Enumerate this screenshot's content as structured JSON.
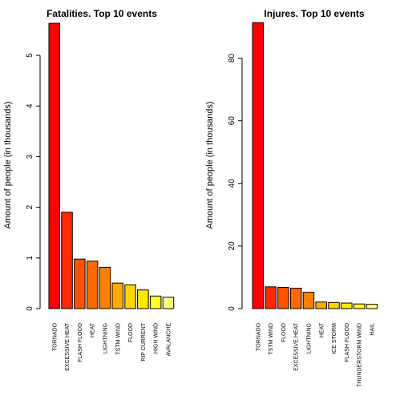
{
  "chart_data": [
    {
      "type": "bar",
      "title": "Fatalities. Top 10 events",
      "xlabel": "",
      "ylabel": "Amount of people (in  thousands)",
      "ylim": [
        0,
        5.65
      ],
      "yticks": [
        0,
        1,
        2,
        3,
        4,
        5
      ],
      "categories": [
        "TORNADO",
        "EXCESSIVE HEAT",
        "FLASH FLOOD",
        "HEAT",
        "LIGHTNING",
        "TSTM WIND",
        "FLOOD",
        "RIP CURRENT",
        "HIGH WIND",
        "AVALANCHE"
      ],
      "values": [
        5.633,
        1.903,
        0.978,
        0.937,
        0.816,
        0.504,
        0.47,
        0.368,
        0.248,
        0.224
      ],
      "colors": [
        "#FF0000",
        "#FF2A00",
        "#FF5500",
        "#FF6A00",
        "#FF8000",
        "#FFAA00",
        "#FFD400",
        "#FFEA00",
        "#FFFF2A",
        "#FFFF80"
      ],
      "grid": false,
      "legend": "none"
    },
    {
      "type": "bar",
      "title": "Injures. Top 10 events",
      "xlabel": "",
      "ylabel": "Amount of people (in  thousands)",
      "ylim": [
        0,
        91.4
      ],
      "yticks": [
        0,
        20,
        40,
        60,
        80
      ],
      "categories": [
        "TORNADO",
        "TSTM WIND",
        "FLOOD",
        "EXCESSIVE HEAT",
        "LIGHTNING",
        "HEAT",
        "ICE STORM",
        "FLASH FLOOD",
        "THUNDERSTORM WIND",
        "HAIL"
      ],
      "values": [
        91.346,
        6.957,
        6.789,
        6.525,
        5.23,
        2.1,
        1.975,
        1.777,
        1.488,
        1.361
      ],
      "colors": [
        "#FF0000",
        "#FF2A00",
        "#FF5500",
        "#FF6A00",
        "#FF8000",
        "#FFAA00",
        "#FFD400",
        "#FFEA00",
        "#FFFF2A",
        "#FFFF80"
      ],
      "grid": false,
      "legend": "none"
    }
  ]
}
